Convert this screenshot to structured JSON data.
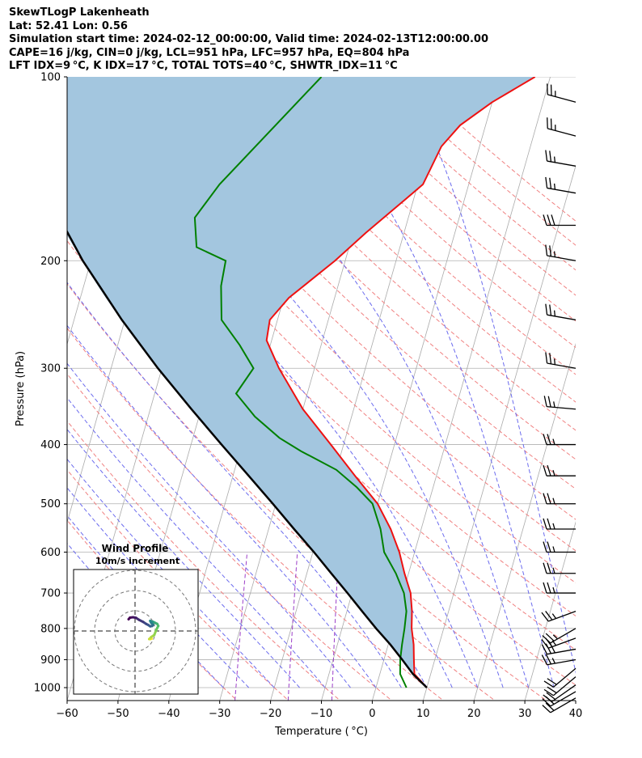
{
  "header": {
    "line1": "SkewTLogP Lakenheath",
    "line2": "Lat: 52.41   Lon: 0.56",
    "line3": "Simulation start time: 2024-02-12_00:00:00, Valid time: 2024-02-13T12:00:00.00",
    "line4": "CAPE=16 j/kg, CIN=0 j/kg, LCL=951 hPa, LFC=957 hPa, EQ=804 hPa",
    "line5": "LFT IDX=9 °C, K IDX=17 °C, TOTAL TOTS=40 °C, SHWTR_IDX=11 °C"
  },
  "chart_data": {
    "type": "line",
    "subtype": "skew-T log-P diagram",
    "xlabel": "Temperature ( °C)",
    "ylabel": "Pressure (hPa)",
    "xlim": [
      -60,
      40
    ],
    "ylim": [
      1050,
      100
    ],
    "y_scale": "log",
    "x_ticks": [
      -60,
      -50,
      -40,
      -30,
      -20,
      -10,
      0,
      10,
      20,
      30,
      40
    ],
    "y_ticks": [
      1000,
      900,
      800,
      700,
      600,
      500,
      400,
      300,
      200,
      100
    ],
    "grid": true,
    "colors": {
      "temperature": "#ee1111",
      "dewpoint": "#008000",
      "parcel": "#000000",
      "cape_fill": "#a3c6df",
      "dry_adiabats": "#f08080",
      "moist_adiabats": "#6b6bee",
      "mixing_ratio": "#9c3fc8",
      "isotherms": "#aaaaaa"
    },
    "series": [
      {
        "key": "temperature",
        "pressure": [
          1000,
          950,
          900,
          850,
          800,
          750,
          700,
          650,
          600,
          550,
          500,
          450,
          400,
          350,
          300,
          270,
          250,
          230,
          200,
          180,
          160,
          150,
          130,
          120,
          110,
          100
        ],
        "temperature": [
          10,
          6.8,
          5.9,
          5.0,
          3.7,
          2.8,
          1.5,
          -0.8,
          -3.0,
          -6.0,
          -10.0,
          -16.0,
          -22.5,
          -30.0,
          -37.0,
          -41.0,
          -41.5,
          -39.0,
          -32.0,
          -27.5,
          -22.0,
          -19.0,
          -17.5,
          -15.0,
          -10.0,
          -3.0
        ]
      },
      {
        "key": "dewpoint",
        "pressure": [
          1000,
          950,
          900,
          850,
          800,
          750,
          700,
          650,
          600,
          550,
          500,
          470,
          440,
          410,
          390,
          360,
          330,
          300,
          275,
          250,
          220,
          200,
          190,
          170,
          150,
          100
        ],
        "temperature": [
          6.0,
          4.0,
          3.2,
          2.7,
          2.3,
          1.7,
          0.2,
          -2.5,
          -6.0,
          -8.0,
          -11.0,
          -15.0,
          -20.0,
          -28.0,
          -33.0,
          -39.0,
          -44.0,
          -42.0,
          -46.0,
          -51.0,
          -53.0,
          -53.5,
          -60.0,
          -62.0,
          -59.0,
          -45.0
        ]
      },
      {
        "key": "parcel",
        "pressure": [
          1000,
          950,
          900,
          850,
          800,
          750,
          700,
          650,
          600,
          550,
          500,
          450,
          400,
          350,
          300,
          250,
          200,
          150,
          100
        ],
        "temperature": [
          10,
          6.5,
          3.6,
          0.4,
          -3.3,
          -7.0,
          -10.9,
          -15.2,
          -19.8,
          -25.0,
          -30.6,
          -36.9,
          -44.0,
          -51.9,
          -60.8,
          -70.6,
          -81.6,
          -94.0,
          -109.0
        ]
      }
    ],
    "wind_barbs": {
      "pressure": [
        1040,
        1015,
        990,
        960,
        930,
        900,
        865,
        830,
        800,
        750,
        700,
        650,
        600,
        550,
        500,
        450,
        400,
        350,
        300,
        250,
        200,
        175,
        155,
        140,
        125,
        110
      ],
      "speed_kt": [
        20,
        20,
        20,
        20,
        20,
        25,
        30,
        25,
        25,
        25,
        25,
        25,
        25,
        25,
        25,
        25,
        25,
        25,
        25,
        25,
        25,
        30,
        25,
        25,
        25,
        25
      ],
      "direction_deg": [
        240,
        240,
        235,
        230,
        230,
        260,
        260,
        250,
        240,
        250,
        270,
        270,
        270,
        270,
        270,
        270,
        270,
        275,
        280,
        280,
        280,
        270,
        280,
        280,
        285,
        285
      ]
    },
    "inset": {
      "title": "Wind Profile",
      "subtitle": "10m/s increment",
      "hodograph_u": [
        8.2,
        7.5,
        7.0,
        8.0,
        9.5,
        10.5,
        11.0,
        11.5,
        11.0,
        10.0,
        9.0,
        8.5,
        7.5,
        8.0,
        9.0,
        8.5,
        7.5,
        6.5,
        5.5,
        4.0,
        2.0,
        0.5,
        -1.0,
        -2.5,
        -3.2
      ],
      "hodograph_v": [
        -3.8,
        -4.0,
        -4.0,
        -3.0,
        -2.0,
        0.5,
        1.5,
        2.5,
        3.5,
        4.0,
        4.5,
        4.5,
        5.0,
        4.0,
        3.0,
        2.5,
        2.3,
        3.0,
        3.5,
        4.5,
        5.5,
        6.5,
        6.8,
        6.6,
        5.8
      ]
    }
  }
}
